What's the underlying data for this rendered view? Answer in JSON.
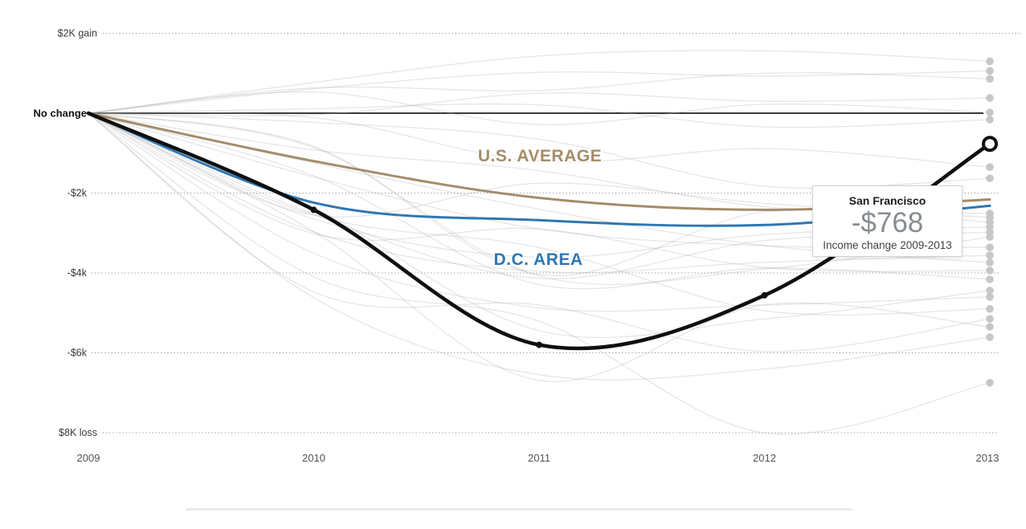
{
  "page": {
    "background": "#ffffff"
  },
  "chart_data": {
    "type": "line",
    "description": "Spaghetti line chart of median income change by metro area, 2009-2013",
    "x": [
      2009,
      2010,
      2011,
      2012,
      2013
    ],
    "x_labels": [
      "2009",
      "2010",
      "2011",
      "2012",
      "2013"
    ],
    "y_axis": [
      {
        "label": "$2K gain",
        "value": 2000
      },
      {
        "label": "No change",
        "value": 0
      },
      {
        "label": "-$2k",
        "value": -2000
      },
      {
        "label": "-$4k",
        "value": -4000
      },
      {
        "label": "-$6k",
        "value": -6000
      },
      {
        "label": "$8K loss",
        "value": -8000
      }
    ],
    "ylim": [
      2000,
      -8000
    ],
    "grid": "dotted",
    "colors": {
      "san_francisco": "#0f0f0f",
      "us_average": "#a58c68",
      "dc_area": "#2f77b2",
      "background_lines": "#aaaaaa",
      "endpoint_dots": "#c7c7c7",
      "no_change_line": "#3b3b3b"
    },
    "series": [
      {
        "name": "San Francisco",
        "color": "#0f0f0f",
        "width": 4.6,
        "values": [
          0,
          -2420,
          -5800,
          -4560,
          -768
        ],
        "marker_years": [
          2010,
          2011,
          2012
        ],
        "end_marker": "open-circle"
      },
      {
        "name": "U.S. AVERAGE",
        "color": "#a58c68",
        "width": 3,
        "values": [
          0,
          -1200,
          -2120,
          -2420,
          -2160
        ]
      },
      {
        "name": "D.C. AREA",
        "color": "#2f77b2",
        "width": 3,
        "values": [
          0,
          -2240,
          -2680,
          -2800,
          -2320
        ]
      }
    ],
    "series_labels": [
      {
        "text": "U.S. AVERAGE",
        "color": "#a58c68",
        "x": 672,
        "y": 201
      },
      {
        "text": "D.C. AREA",
        "color": "#2e77b0",
        "x": 670,
        "y": 330
      }
    ],
    "other_metros_change_2013": [
      1300,
      1060,
      860,
      380,
      20,
      -160,
      -1350,
      -1630,
      -2510,
      -2610,
      -2730,
      -2850,
      -2980,
      -3100,
      -3360,
      -3560,
      -3740,
      -3940,
      -4160,
      -4440,
      -4600,
      -4900,
      -5150,
      -5350,
      -5610,
      -6750
    ]
  },
  "tooltip": {
    "city": "San Francisco",
    "value": "-$768",
    "caption": "Income change 2009-2013"
  }
}
